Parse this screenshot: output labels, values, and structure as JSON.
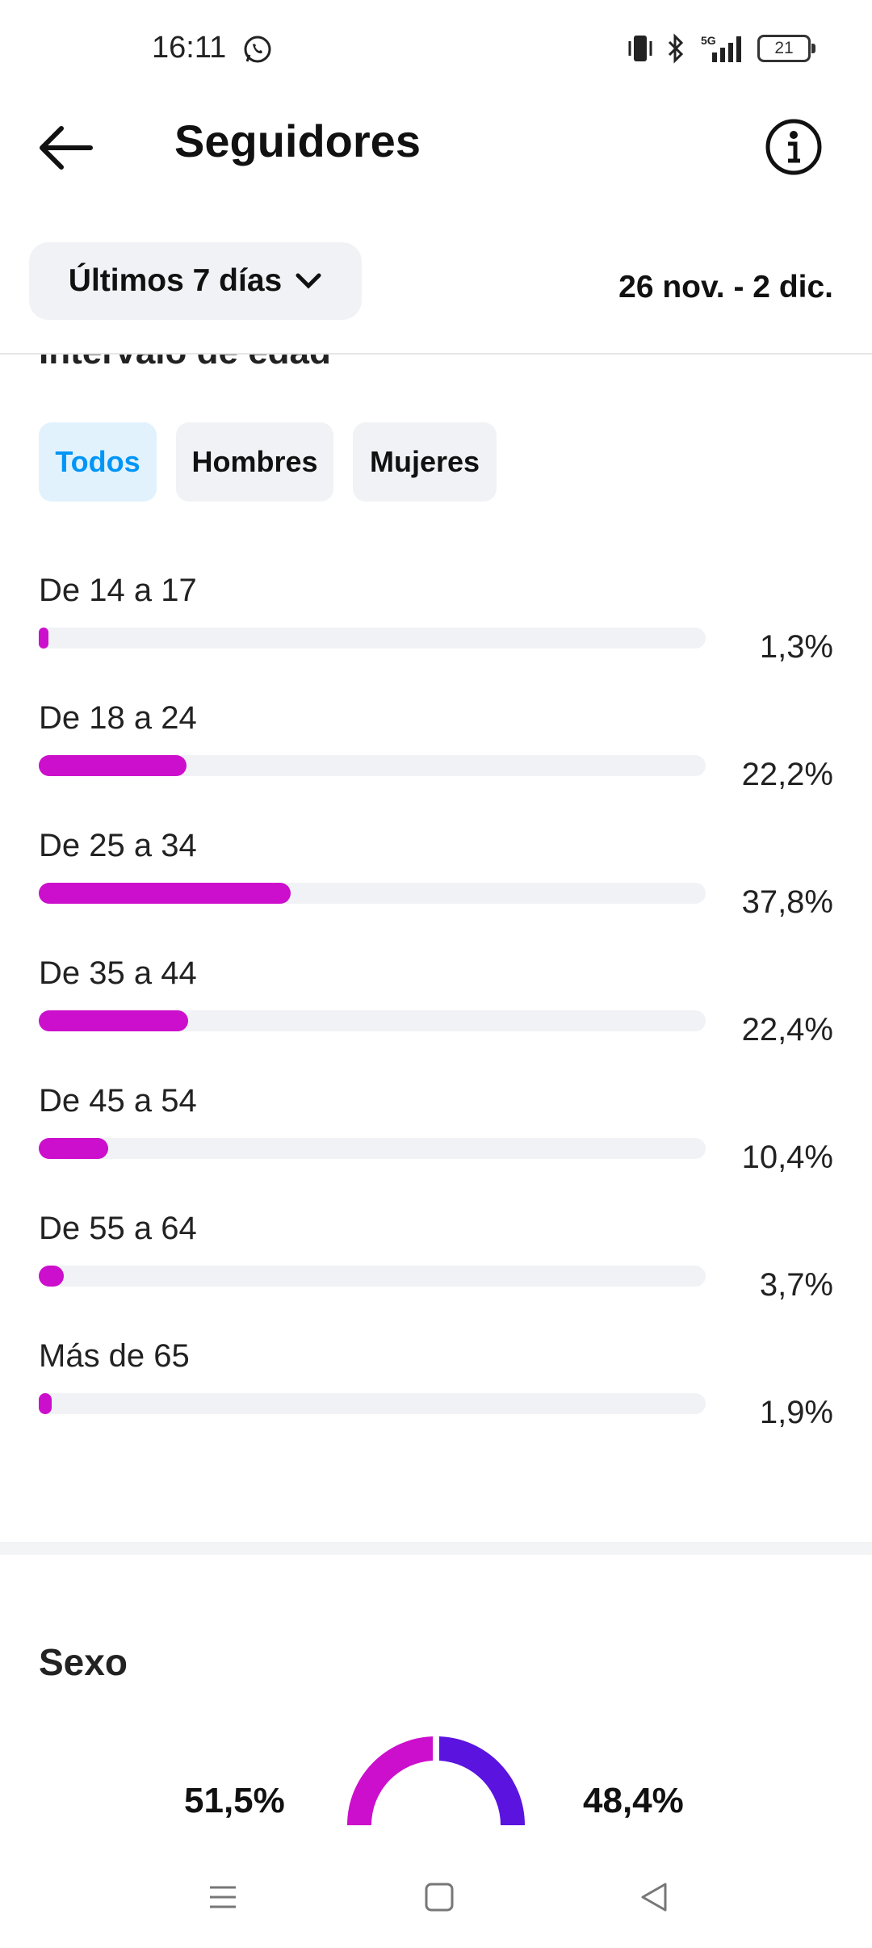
{
  "status_bar": {
    "time": "16:11",
    "battery_level": "21",
    "network": "5G"
  },
  "header": {
    "title": "Seguidores"
  },
  "filters": {
    "period_label": "Últimos 7 días",
    "date_range": "26 nov. - 2 dic."
  },
  "age_section": {
    "heading": "Intervalo de edad",
    "tabs": [
      {
        "label": "Todos",
        "selected": true
      },
      {
        "label": "Hombres",
        "selected": false
      },
      {
        "label": "Mujeres",
        "selected": false
      }
    ],
    "bar_color": "#cc0fcc",
    "ranges": [
      {
        "label": "De 14 a 17",
        "value_text": "1,3%",
        "percent": 1.3
      },
      {
        "label": "De 18 a 24",
        "value_text": "22,2%",
        "percent": 22.2
      },
      {
        "label": "De 25 a 34",
        "value_text": "37,8%",
        "percent": 37.8
      },
      {
        "label": "De 35 a 44",
        "value_text": "22,4%",
        "percent": 22.4
      },
      {
        "label": "De 45 a 54",
        "value_text": "10,4%",
        "percent": 10.4
      },
      {
        "label": "De 55 a 64",
        "value_text": "3,7%",
        "percent": 3.7
      },
      {
        "label": "Más de 65",
        "value_text": "1,9%",
        "percent": 1.9
      }
    ]
  },
  "sex_section": {
    "heading": "Sexo",
    "men_percent_text": "51,5%",
    "women_percent_text": "48,4%",
    "men_color": "#cc0fcc",
    "women_color": "#5b13e0"
  },
  "icons": {
    "back": "arrow-left-icon",
    "info": "info-icon",
    "dropdown": "chevron-down-icon"
  }
}
